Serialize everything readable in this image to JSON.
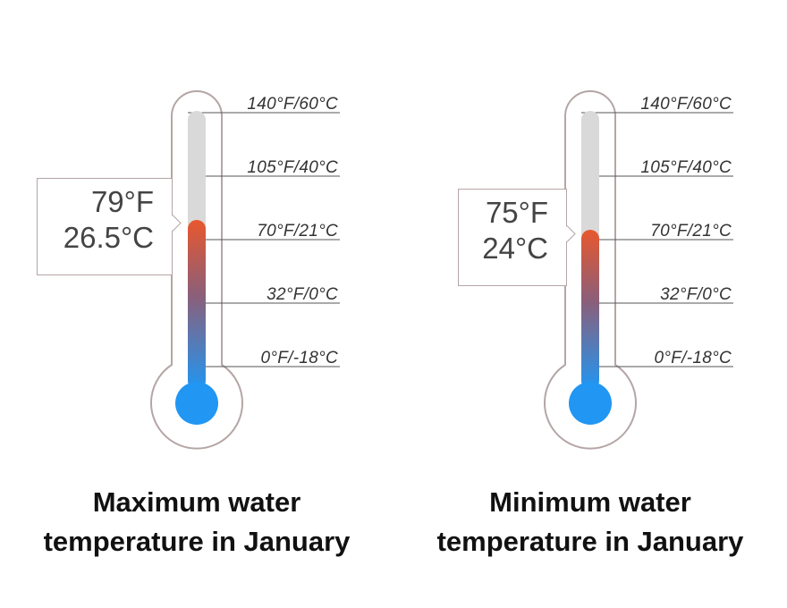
{
  "scale_labels": [
    "140°F/60°C",
    "105°F/40°C",
    "70°F/21°C",
    "32°F/0°C",
    "0°F/-18°C"
  ],
  "colors": {
    "outline": "#b5a5a5",
    "empty_tube": "#d9d9d9",
    "hot": "#e8572e",
    "cold": "#2196f3",
    "text": "#333333"
  },
  "thermometers": [
    {
      "value_f": 79,
      "value_c": 26.5,
      "reading_f": "79°F",
      "reading_c": "26.5°C",
      "caption_line1": "Maximum water",
      "caption_line2": "temperature in January"
    },
    {
      "value_f": 75,
      "value_c": 24,
      "reading_f": "75°F",
      "reading_c": "24°C",
      "caption_line1": "Minimum water",
      "caption_line2": "temperature in January"
    }
  ]
}
